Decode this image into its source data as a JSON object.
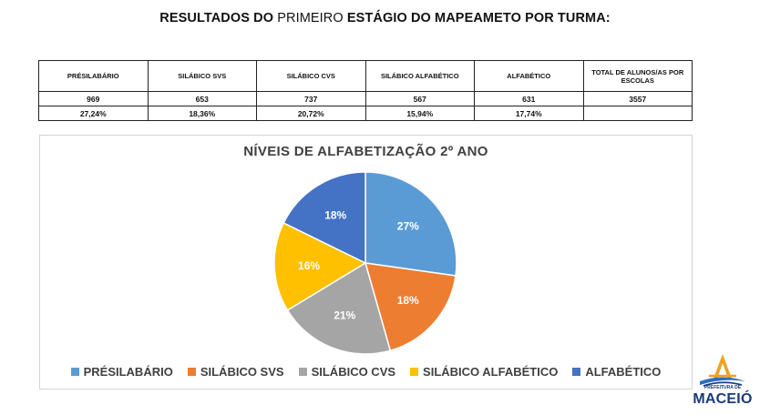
{
  "header": {
    "title_part1": "RESULTADOS DO",
    "title_part2": "PRIMEIRO",
    "title_part3": "ESTÁGIO DO MAPEAMETO POR TURMA:"
  },
  "table": {
    "headers": [
      "PRÉSILABÁRIO",
      "SILÁBICO SVS",
      "SILÁBICO CVS",
      "SILÁBICO ALFABÉTICO",
      "ALFABÉTICO",
      "TOTAL DE ALUNOS/AS POR ESCOLAS"
    ],
    "counts": [
      "969",
      "653",
      "737",
      "567",
      "631",
      "3557"
    ],
    "percents": [
      "27,24%",
      "18,36%",
      "20,72%",
      "15,94%",
      "17,74%",
      ""
    ]
  },
  "chart_data": {
    "type": "pie",
    "title": "NÍVEIS DE ALFABETIZAÇÃO 2º ANO",
    "categories": [
      "PRÉSILABÁRIO",
      "SILÁBICO SVS",
      "SILÁBICO CVS",
      "SILÁBICO ALFABÉTICO",
      "ALFABÉTICO"
    ],
    "values": [
      27.24,
      18.36,
      20.72,
      15.94,
      17.74
    ],
    "labels": [
      "27%",
      "18%",
      "21%",
      "16%",
      "18%"
    ],
    "colors": [
      "#5b9bd5",
      "#ed7d31",
      "#a5a5a5",
      "#ffc000",
      "#4472c4"
    ],
    "legend": "bottom"
  },
  "logo": {
    "sub": "PREFEITURA DE",
    "name": "MACEIÓ"
  }
}
